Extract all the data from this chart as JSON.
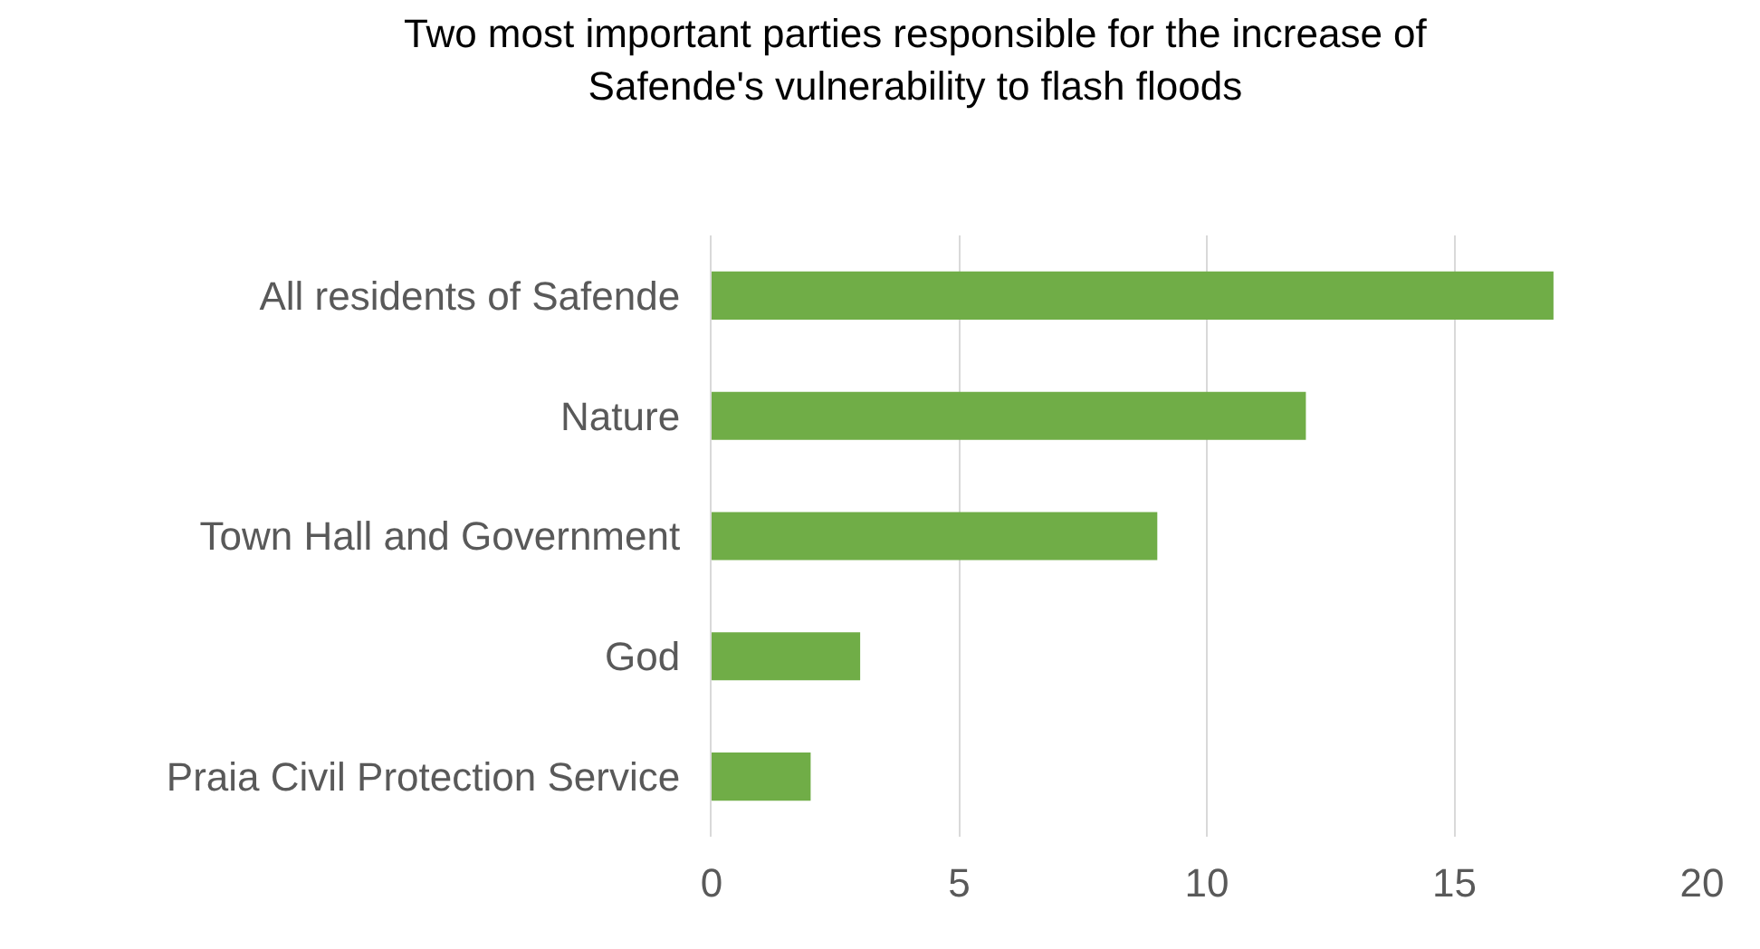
{
  "chart_data": {
    "type": "bar",
    "orientation": "horizontal",
    "title": "Two most important parties responsible for the increase of Safende's vulnerability to flash floods",
    "categories": [
      "All residents of Safende",
      "Nature",
      "Town Hall and Government",
      "God",
      "Praia Civil Protection Service"
    ],
    "values": [
      17,
      12,
      9,
      3,
      2
    ],
    "color": "#70ad47",
    "xlim": [
      0,
      20
    ],
    "xticks": [
      0,
      5,
      10,
      15,
      20
    ],
    "grid": "x",
    "legend": false
  }
}
